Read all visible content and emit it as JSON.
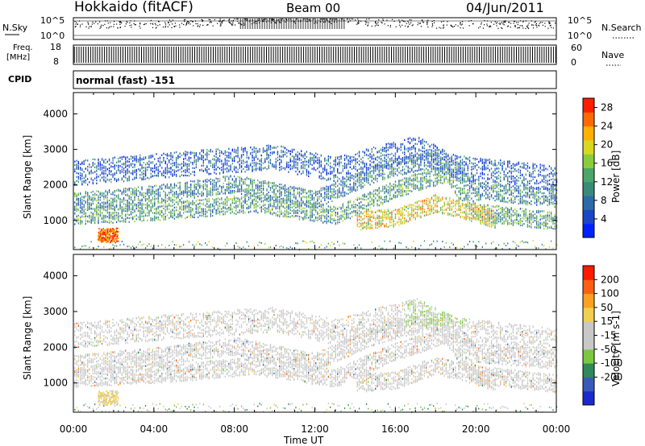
{
  "header": {
    "title": "Hokkaido (fitACF)",
    "beam": "Beam 00",
    "date": "04/Jun/2011"
  },
  "top_strips": {
    "nsky_label": "N.Sky",
    "nsky_ticks": [
      "10^5",
      "10^0"
    ],
    "nsearch_label": "N.Search",
    "nsearch_ticks": [
      "10^5",
      "10^0"
    ],
    "freq_label_1": "Freq.",
    "freq_label_2": "[MHz]",
    "freq_ticks": [
      "18",
      "8"
    ],
    "nave_label": "Nave",
    "nave_ticks": [
      "60",
      "0"
    ],
    "cpid_label": "CPID",
    "cpid_text": "normal (fast) -151"
  },
  "chart_data": [
    {
      "type": "heatmap",
      "name": "power",
      "ylabel": "Slant Range [km]",
      "yticks": [
        "4000",
        "3000",
        "2000",
        "1000"
      ],
      "ylim": [
        180,
        4600
      ],
      "xlim": [
        0,
        24
      ],
      "colorbar": {
        "label": "Power [dB]",
        "ticks": [
          "28",
          "24",
          "20",
          "16",
          "12",
          "8",
          "4"
        ],
        "range": [
          0,
          30
        ],
        "colors": [
          "#0020ff",
          "#1c46c8",
          "#2f6aa8",
          "#3a8a7a",
          "#4aa66a",
          "#8ccc3c",
          "#d8d820",
          "#ffb000",
          "#ff6a00",
          "#ff1e00"
        ]
      },
      "scatter_bands": [
        {
          "hours": [
            0,
            5,
            9,
            13,
            16,
            18.5,
            20,
            24
          ],
          "km": [
            1150,
            1300,
            1500,
            1150,
            1900,
            2350,
            1250,
            1000
          ],
          "power_db": 12
        },
        {
          "hours": [
            0,
            4,
            8,
            12,
            15,
            17,
            18.5,
            20,
            24
          ],
          "km": [
            1550,
            1750,
            2050,
            1600,
            2350,
            2650,
            2750,
            1850,
            1650
          ],
          "power_db": 10
        },
        {
          "hours": [
            0,
            5,
            10,
            13,
            17,
            19,
            24
          ],
          "km": [
            2350,
            2600,
            2800,
            2450,
            3050,
            2500,
            2200
          ],
          "power_db": 6
        },
        {
          "hours": [
            14,
            16,
            18,
            19.5,
            21
          ],
          "km": [
            1000,
            1100,
            1500,
            1300,
            1050
          ],
          "power_db": 20
        }
      ],
      "hotspot": {
        "hours": [
          1.2,
          2.2
        ],
        "km": [
          400,
          800
        ],
        "power_db": 26
      }
    },
    {
      "type": "heatmap",
      "name": "velocity",
      "ylabel": "Slant Range [km]",
      "yticks": [
        "4000",
        "3000",
        "2000",
        "1000"
      ],
      "ylim": [
        180,
        4600
      ],
      "xlim": [
        0,
        24
      ],
      "colorbar": {
        "label": "Velocity [m s-1]",
        "ticks": [
          "200",
          "100",
          "50",
          "15",
          "-15",
          "-50",
          "-100",
          "-200"
        ],
        "range": [
          -250,
          250
        ],
        "colors": [
          "#1a2acc",
          "#3a5ab8",
          "#2f8a5a",
          "#7cc840",
          "#c8c8c8",
          "#c8c8c8",
          "#f0d050",
          "#ffa020",
          "#ff6010",
          "#ff1a00"
        ]
      },
      "green_region": {
        "hours": [
          16.5,
          19.5
        ],
        "km": [
          2600,
          3300
        ],
        "velocity_ms": 60
      },
      "xticks": [
        "00:00",
        "04:00",
        "08:00",
        "12:00",
        "16:00",
        "20:00",
        "00:00"
      ],
      "xlabel": "Time UT"
    }
  ]
}
